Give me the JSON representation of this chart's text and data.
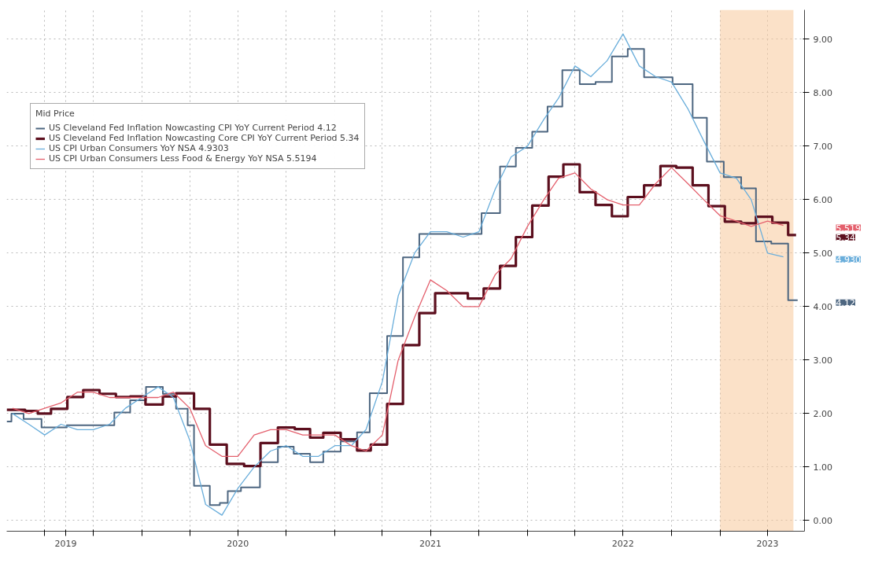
{
  "chart_data": {
    "type": "line",
    "legend_title": "Mid Price",
    "legend": "top left",
    "grid": true,
    "line_style": "solid",
    "xlim": [
      "2019-04-20",
      "2023-06-10"
    ],
    "xticks": [
      {
        "value": "2019-07-01",
        "label": null
      },
      {
        "value": "2019-08-10",
        "label": "2019"
      },
      {
        "value": "2019-10-01",
        "label": null
      },
      {
        "value": "2020-01-01",
        "label": null
      },
      {
        "value": "2020-04-01",
        "label": null
      },
      {
        "value": "2020-07-01",
        "label": "2020"
      },
      {
        "value": "2020-10-01",
        "label": null
      },
      {
        "value": "2021-01-01",
        "label": null
      },
      {
        "value": "2021-04-01",
        "label": null
      },
      {
        "value": "2021-07-01",
        "label": "2021"
      },
      {
        "value": "2021-10-01",
        "label": null
      },
      {
        "value": "2022-01-01",
        "label": null
      },
      {
        "value": "2022-04-01",
        "label": null
      },
      {
        "value": "2022-07-01",
        "label": "2022"
      },
      {
        "value": "2022-10-01",
        "label": null
      },
      {
        "value": "2023-01-01",
        "label": null
      },
      {
        "value": "2023-04-01",
        "label": "2023"
      }
    ],
    "ylim": [
      -0.2,
      9.55
    ],
    "yticks": [
      {
        "value": 0,
        "label": "0.00"
      },
      {
        "value": 1,
        "label": "1.00"
      },
      {
        "value": 2,
        "label": "2.00"
      },
      {
        "value": 3,
        "label": "3.00"
      },
      {
        "value": 4,
        "label": "4.00"
      },
      {
        "value": 5,
        "label": "5.00"
      },
      {
        "value": 6,
        "label": "6.00"
      },
      {
        "value": 7,
        "label": "7.00"
      },
      {
        "value": 8,
        "label": "8.00"
      },
      {
        "value": 9,
        "label": "9.00"
      }
    ],
    "bands": [
      {
        "axis": "x",
        "from": "2023-01-01",
        "to": "2023-05-20",
        "color": "#f7c99a"
      }
    ],
    "annotations": [
      "4.12",
      "5.34",
      "4.930",
      "5.519"
    ],
    "series": [
      {
        "name": "US Cleveland Fed Inflation Nowcasting CPI YoY Current Period 4.12",
        "type": "step",
        "color": "#4d6680",
        "x": [
          "2019-04-20",
          "2019-04-29",
          "2019-05-22",
          "2019-06-25",
          "2019-08-12",
          "2019-11-10",
          "2019-12-10",
          "2020-01-09",
          "2020-02-10",
          "2020-03-06",
          "2020-03-28",
          "2020-04-09",
          "2020-05-09",
          "2020-05-28",
          "2020-06-12",
          "2020-07-07",
          "2020-08-12",
          "2020-09-15",
          "2020-10-15",
          "2020-11-15",
          "2020-12-10",
          "2021-01-12",
          "2021-02-12",
          "2021-03-08",
          "2021-04-10",
          "2021-05-10",
          "2021-06-10",
          "2021-10-06",
          "2021-11-10",
          "2021-12-10",
          "2022-01-10",
          "2022-02-08",
          "2022-03-08",
          "2022-04-10",
          "2022-05-10",
          "2022-06-10",
          "2022-07-10",
          "2022-08-10",
          "2022-10-03",
          "2022-11-10",
          "2022-12-07",
          "2023-01-08",
          "2023-02-10",
          "2023-03-10",
          "2023-04-08",
          "2023-05-10",
          "2023-05-28"
        ],
        "values": [
          1.85,
          2.0,
          1.9,
          1.74,
          1.78,
          2.02,
          2.25,
          2.5,
          2.37,
          2.09,
          1.78,
          0.65,
          0.29,
          0.33,
          0.55,
          0.62,
          1.09,
          1.38,
          1.25,
          1.09,
          1.29,
          1.48,
          1.65,
          2.38,
          3.45,
          4.92,
          5.36,
          5.75,
          6.62,
          6.97,
          7.27,
          7.74,
          8.42,
          8.16,
          8.2,
          8.68,
          8.82,
          8.29,
          8.16,
          7.53,
          6.71,
          6.42,
          6.21,
          5.22,
          5.18,
          4.12,
          4.12
        ]
      },
      {
        "name": "US Cleveland Fed Inflation Nowcasting Core CPI YoY Current Period 5.34",
        "type": "step",
        "color": "#5c0f1e",
        "x": [
          "2019-04-20",
          "2019-05-25",
          "2019-06-18",
          "2019-07-13",
          "2019-08-13",
          "2019-09-12",
          "2019-10-13",
          "2019-11-13",
          "2019-12-10",
          "2020-01-08",
          "2020-02-10",
          "2020-03-06",
          "2020-04-09",
          "2020-05-09",
          "2020-06-10",
          "2020-07-13",
          "2020-08-13",
          "2020-09-15",
          "2020-10-17",
          "2020-11-15",
          "2020-12-10",
          "2021-01-12",
          "2021-02-12",
          "2021-03-10",
          "2021-04-10",
          "2021-05-10",
          "2021-06-10",
          "2021-07-10",
          "2021-09-10",
          "2021-10-10",
          "2021-11-10",
          "2021-12-10",
          "2022-01-10",
          "2022-02-10",
          "2022-03-10",
          "2022-04-10",
          "2022-05-10",
          "2022-06-10",
          "2022-07-10",
          "2022-08-10",
          "2022-09-10",
          "2022-10-10",
          "2022-11-10",
          "2022-12-10",
          "2023-01-10",
          "2023-02-10",
          "2023-03-10",
          "2023-04-10",
          "2023-05-10",
          "2023-05-25"
        ],
        "values": [
          2.07,
          2.05,
          2.0,
          2.09,
          2.31,
          2.44,
          2.37,
          2.31,
          2.32,
          2.17,
          2.32,
          2.38,
          2.09,
          1.42,
          1.06,
          1.02,
          1.45,
          1.74,
          1.71,
          1.55,
          1.64,
          1.52,
          1.31,
          1.42,
          2.18,
          3.28,
          3.88,
          4.25,
          4.15,
          4.34,
          4.76,
          5.3,
          5.89,
          6.43,
          6.66,
          6.14,
          5.9,
          5.69,
          6.05,
          6.27,
          6.63,
          6.6,
          6.27,
          5.88,
          5.59,
          5.56,
          5.68,
          5.57,
          5.34,
          5.34
        ]
      },
      {
        "name": "US CPI Urban Consumers YoY NSA 4.9303",
        "color": "#6aaedb",
        "x": [
          "2019-05-01",
          "2019-06-01",
          "2019-07-01",
          "2019-08-01",
          "2019-09-01",
          "2019-10-01",
          "2019-11-01",
          "2019-12-01",
          "2020-01-01",
          "2020-02-01",
          "2020-03-01",
          "2020-04-01",
          "2020-05-01",
          "2020-06-01",
          "2020-07-01",
          "2020-08-01",
          "2020-09-01",
          "2020-10-01",
          "2020-11-01",
          "2020-12-01",
          "2021-01-01",
          "2021-02-01",
          "2021-03-01",
          "2021-04-01",
          "2021-05-01",
          "2021-06-01",
          "2021-07-01",
          "2021-08-01",
          "2021-09-01",
          "2021-10-01",
          "2021-11-01",
          "2021-12-01",
          "2022-01-01",
          "2022-02-01",
          "2022-03-01",
          "2022-04-01",
          "2022-05-01",
          "2022-06-01",
          "2022-07-01",
          "2022-08-01",
          "2022-09-01",
          "2022-10-01",
          "2022-11-01",
          "2022-12-01",
          "2023-01-01",
          "2023-02-01",
          "2023-03-01",
          "2023-04-01",
          "2023-05-01"
        ],
        "values": [
          2.0,
          1.8,
          1.6,
          1.8,
          1.7,
          1.7,
          1.8,
          2.1,
          2.3,
          2.5,
          2.3,
          1.5,
          0.3,
          0.1,
          0.6,
          1.0,
          1.3,
          1.4,
          1.2,
          1.2,
          1.4,
          1.4,
          1.7,
          2.6,
          4.2,
          5.0,
          5.4,
          5.4,
          5.3,
          5.4,
          6.2,
          6.8,
          7.0,
          7.5,
          7.9,
          8.5,
          8.3,
          8.6,
          9.1,
          8.5,
          8.3,
          8.2,
          7.7,
          7.1,
          6.5,
          6.4,
          6.0,
          5.0,
          4.93
        ]
      },
      {
        "name": "US CPI Urban Consumers Less Food & Energy YoY NSA 5.5194",
        "color": "#e4606d",
        "x": [
          "2019-05-01",
          "2019-06-01",
          "2019-07-01",
          "2019-08-01",
          "2019-09-01",
          "2019-10-01",
          "2019-11-01",
          "2019-12-01",
          "2020-01-01",
          "2020-02-01",
          "2020-03-01",
          "2020-04-01",
          "2020-05-01",
          "2020-06-01",
          "2020-07-01",
          "2020-08-01",
          "2020-09-01",
          "2020-10-01",
          "2020-11-01",
          "2020-12-01",
          "2021-01-01",
          "2021-02-01",
          "2021-03-01",
          "2021-04-01",
          "2021-05-01",
          "2021-06-01",
          "2021-07-01",
          "2021-08-01",
          "2021-09-01",
          "2021-10-01",
          "2021-11-01",
          "2021-12-01",
          "2022-01-01",
          "2022-02-01",
          "2022-03-01",
          "2022-04-01",
          "2022-05-01",
          "2022-06-01",
          "2022-07-01",
          "2022-08-01",
          "2022-09-01",
          "2022-10-01",
          "2022-11-01",
          "2022-12-01",
          "2023-01-01",
          "2023-02-01",
          "2023-03-01",
          "2023-04-01",
          "2023-05-01"
        ],
        "values": [
          2.1,
          2.0,
          2.1,
          2.2,
          2.4,
          2.4,
          2.3,
          2.3,
          2.3,
          2.3,
          2.4,
          2.1,
          1.4,
          1.2,
          1.2,
          1.6,
          1.7,
          1.7,
          1.6,
          1.6,
          1.6,
          1.4,
          1.3,
          1.6,
          3.0,
          3.8,
          4.5,
          4.3,
          4.0,
          4.0,
          4.6,
          4.9,
          5.5,
          6.0,
          6.4,
          6.5,
          6.2,
          6.0,
          5.9,
          5.9,
          6.3,
          6.6,
          6.3,
          6.0,
          5.7,
          5.6,
          5.5,
          5.6,
          5.52
        ]
      }
    ]
  }
}
